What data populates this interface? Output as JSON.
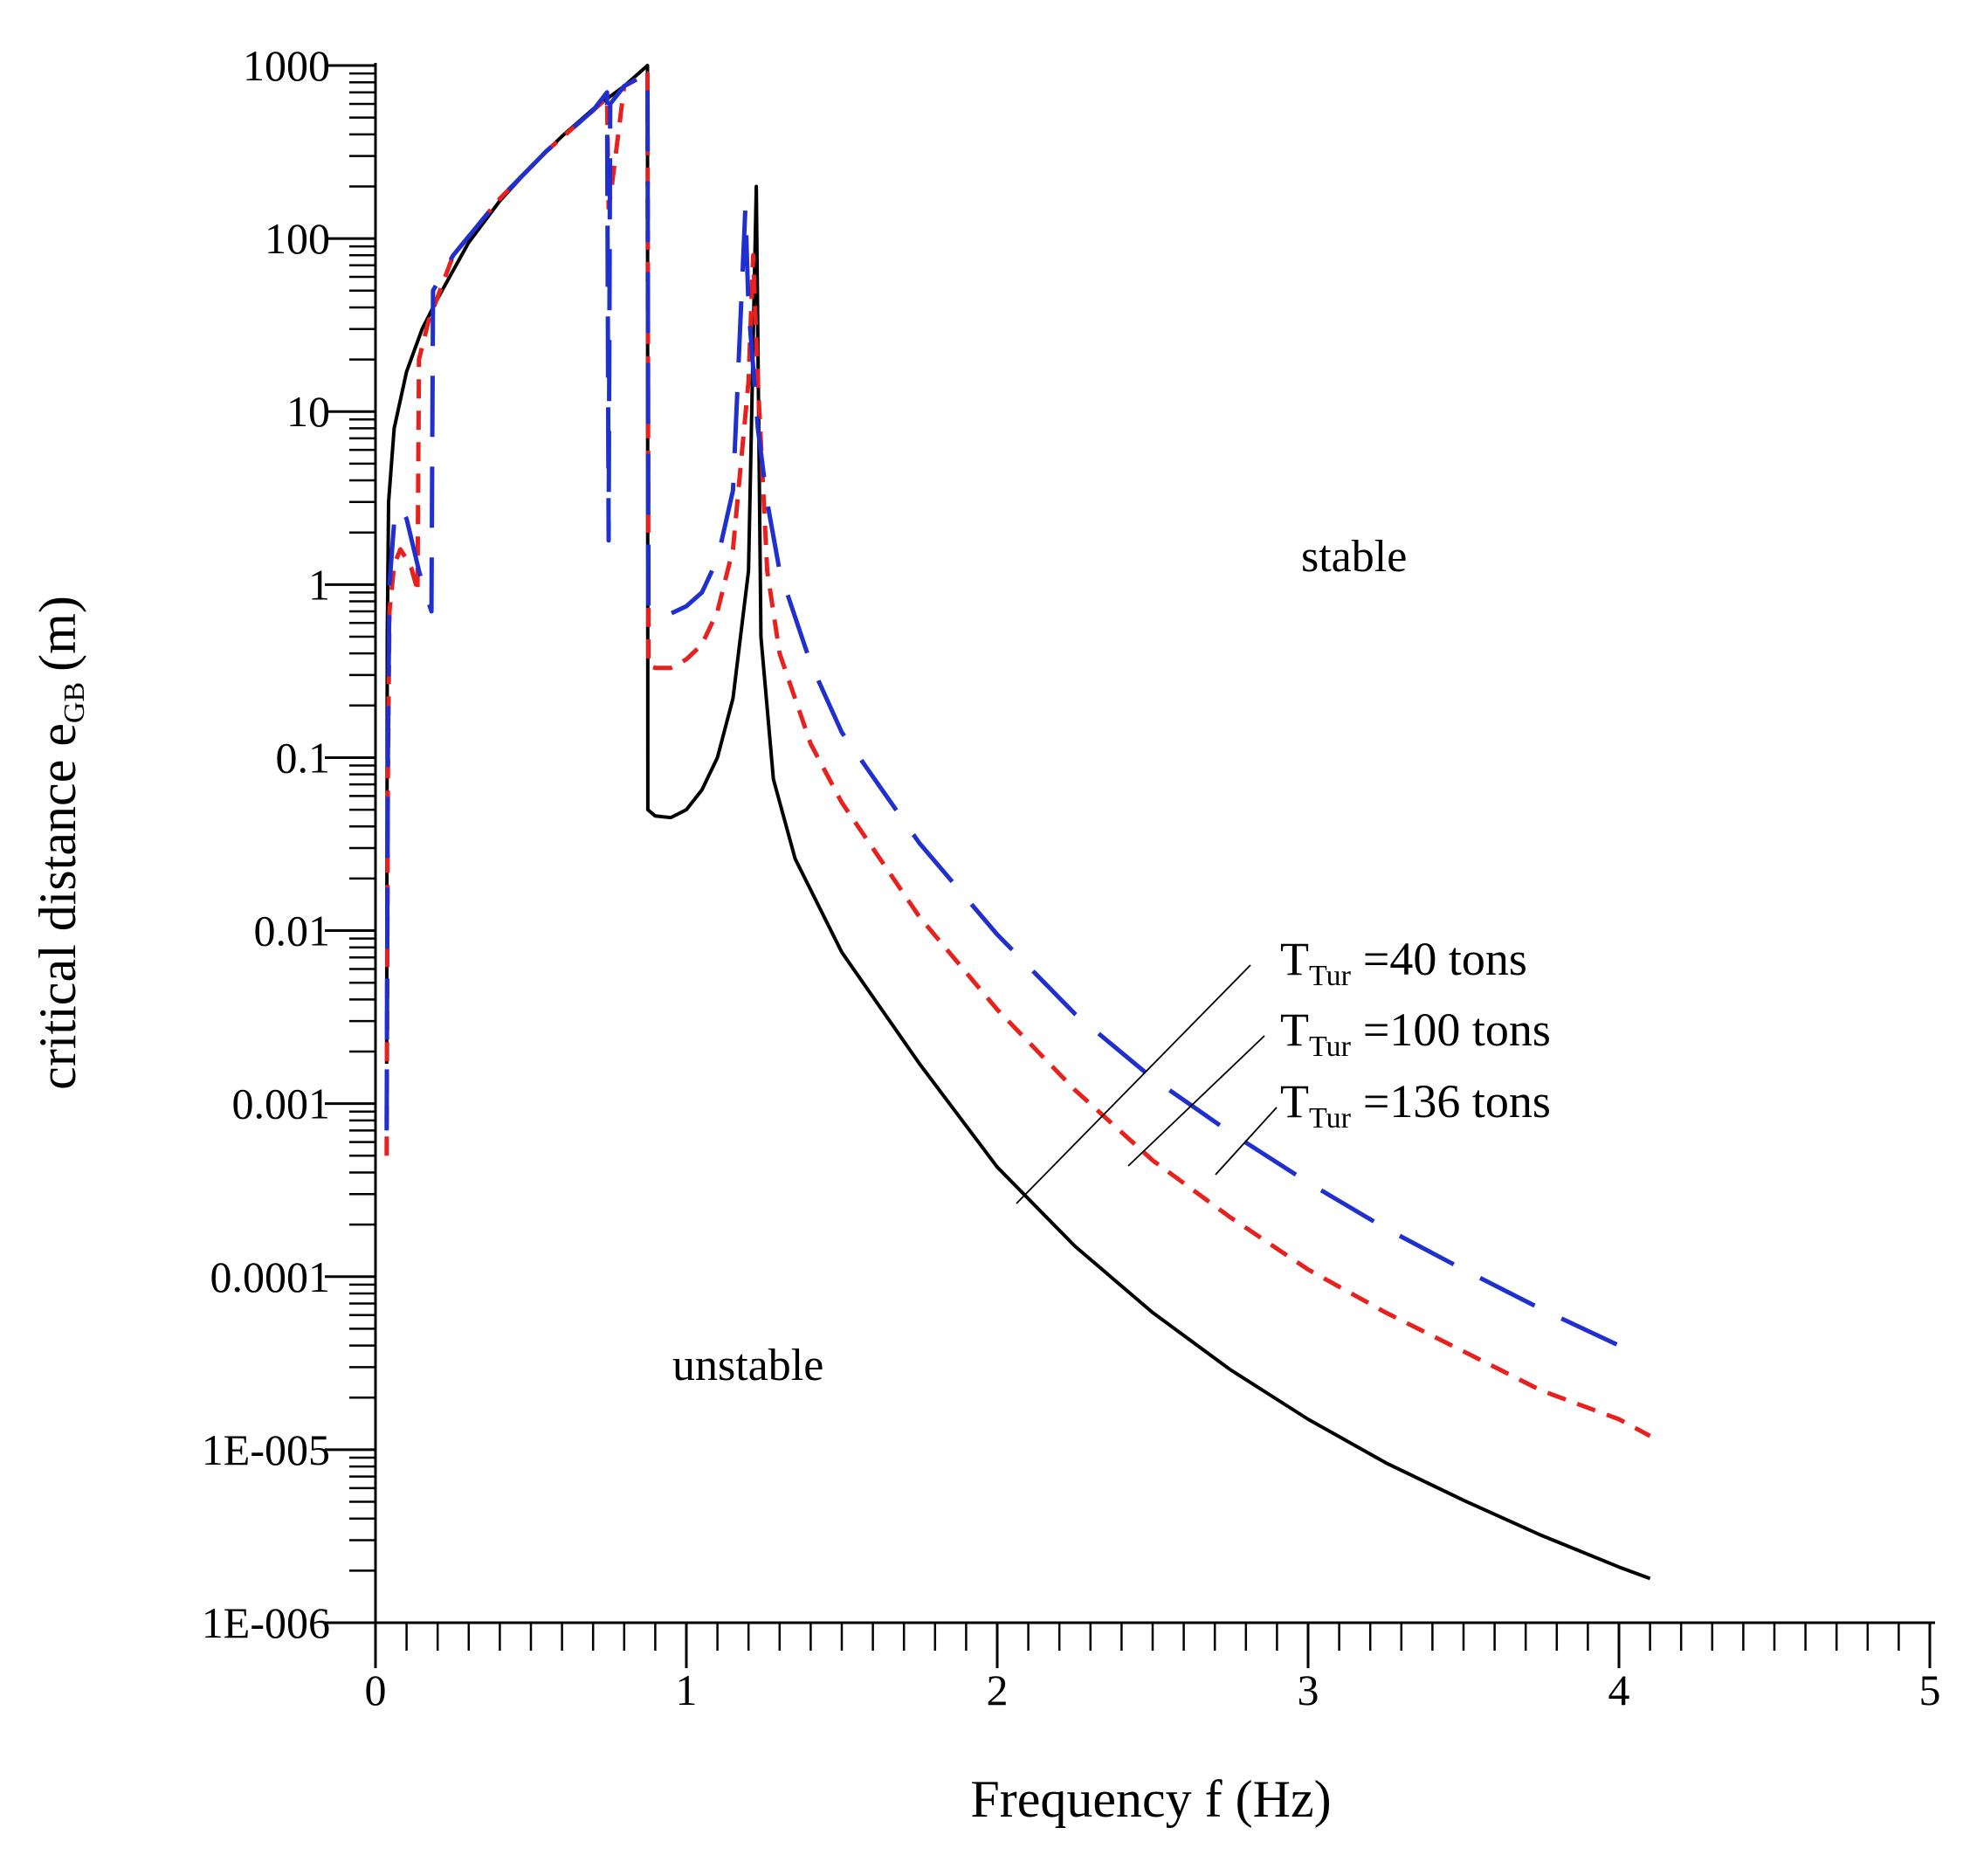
{
  "chart_data": {
    "type": "line",
    "title": "",
    "xlabel": "Frequency f (Hz)",
    "ylabel": {
      "main": "critical distance e",
      "sub": "GB",
      "unit": "(m)"
    },
    "xlim": [
      0,
      5
    ],
    "ylim": [
      1e-06,
      1000
    ],
    "yscale": "log",
    "x_ticks": [
      "0",
      "1",
      "2",
      "3",
      "4",
      "5"
    ],
    "x_tick_values": [
      0,
      1,
      2,
      3,
      4,
      5
    ],
    "y_ticks": [
      "1E-006",
      "1E-005",
      "0.0001",
      "0.001",
      "0.01",
      "0.1",
      "1",
      "10",
      "100",
      "1000"
    ],
    "y_tick_values": [
      1e-06,
      1e-05,
      0.0001,
      0.001,
      0.01,
      0.1,
      1,
      10,
      100,
      1000
    ],
    "annotations": {
      "stable": "stable",
      "unstable": "unstable"
    },
    "legend": [
      {
        "prefix": "T",
        "sub": "Tur",
        "text": "=40 tons"
      },
      {
        "prefix": "T",
        "sub": "Tur",
        "text": "=100 tons"
      },
      {
        "prefix": "T",
        "sub": "Tur",
        "text": "=136 tons"
      }
    ],
    "series": [
      {
        "name": "T_Tur=40 tons",
        "color": "#000000",
        "style": "solid",
        "points": [
          [
            0.036,
            0.0017
          ],
          [
            0.038,
            0.5
          ],
          [
            0.042,
            3
          ],
          [
            0.06,
            8
          ],
          [
            0.1,
            17
          ],
          [
            0.15,
            30
          ],
          [
            0.2,
            45
          ],
          [
            0.3,
            95
          ],
          [
            0.4,
            165
          ],
          [
            0.5,
            260
          ],
          [
            0.6,
            390
          ],
          [
            0.7,
            560
          ],
          [
            0.8,
            760
          ],
          [
            0.875,
            1000
          ],
          [
            0.876,
            0.05
          ],
          [
            0.9,
            0.046
          ],
          [
            0.95,
            0.045
          ],
          [
            1.0,
            0.05
          ],
          [
            1.05,
            0.065
          ],
          [
            1.1,
            0.1
          ],
          [
            1.15,
            0.22
          ],
          [
            1.2,
            1.2
          ],
          [
            1.225,
            200
          ],
          [
            1.24,
            0.5
          ],
          [
            1.28,
            0.075
          ],
          [
            1.35,
            0.026
          ],
          [
            1.5,
            0.0075
          ],
          [
            1.75,
            0.0017
          ],
          [
            2.0,
            0.00043
          ],
          [
            2.25,
            0.00015
          ],
          [
            2.5,
            6.2e-05
          ],
          [
            2.75,
            2.9e-05
          ],
          [
            3.0,
            1.5e-05
          ],
          [
            3.25,
            8.4e-06
          ],
          [
            3.5,
            5.1e-06
          ],
          [
            3.75,
            3.2e-06
          ],
          [
            4.0,
            2.1e-06
          ],
          [
            4.1,
            1.8e-06
          ]
        ]
      },
      {
        "name": "T_Tur=100 tons",
        "color": "#e8201e",
        "style": "short-dash",
        "points": [
          [
            0.036,
            0.0005
          ],
          [
            0.04,
            0.08
          ],
          [
            0.045,
            0.7
          ],
          [
            0.06,
            1.3
          ],
          [
            0.08,
            1.6
          ],
          [
            0.1,
            1.4
          ],
          [
            0.115,
            1.25
          ],
          [
            0.13,
            1.0
          ],
          [
            0.135,
            0.9
          ],
          [
            0.14,
            20
          ],
          [
            0.17,
            33
          ],
          [
            0.25,
            80
          ],
          [
            0.4,
            170
          ],
          [
            0.55,
            320
          ],
          [
            0.7,
            550
          ],
          [
            0.745,
            650
          ],
          [
            0.75,
            150
          ],
          [
            0.76,
            200
          ],
          [
            0.8,
            760
          ],
          [
            0.875,
            900
          ],
          [
            0.878,
            0.34
          ],
          [
            0.9,
            0.33
          ],
          [
            0.95,
            0.33
          ],
          [
            1.0,
            0.37
          ],
          [
            1.05,
            0.45
          ],
          [
            1.1,
            0.7
          ],
          [
            1.15,
            1.6
          ],
          [
            1.2,
            15
          ],
          [
            1.215,
            80
          ],
          [
            1.23,
            15
          ],
          [
            1.26,
            1.2
          ],
          [
            1.3,
            0.4
          ],
          [
            1.4,
            0.12
          ],
          [
            1.5,
            0.055
          ],
          [
            1.75,
            0.012
          ],
          [
            2.0,
            0.0035
          ],
          [
            2.25,
            0.0012
          ],
          [
            2.5,
            0.00047
          ],
          [
            2.75,
            0.00022
          ],
          [
            3.0,
            0.00011
          ],
          [
            3.25,
            6.2e-05
          ],
          [
            3.5,
            3.7e-05
          ],
          [
            3.75,
            2.2e-05
          ],
          [
            4.0,
            1.5e-05
          ],
          [
            4.1,
            1.2e-05
          ]
        ]
      },
      {
        "name": "T_Tur=136 tons",
        "color": "#1f2fd0",
        "style": "long-dash",
        "points": [
          [
            0.036,
            0.0007
          ],
          [
            0.04,
            0.1
          ],
          [
            0.045,
            1.0
          ],
          [
            0.06,
            2.3
          ],
          [
            0.08,
            2.8
          ],
          [
            0.1,
            2.4
          ],
          [
            0.12,
            1.7
          ],
          [
            0.14,
            1.2
          ],
          [
            0.16,
            0.9
          ],
          [
            0.18,
            0.7
          ],
          [
            0.185,
            50
          ],
          [
            0.25,
            80
          ],
          [
            0.4,
            170
          ],
          [
            0.55,
            320
          ],
          [
            0.7,
            550
          ],
          [
            0.745,
            700
          ],
          [
            0.75,
            1.8
          ],
          [
            0.755,
            600
          ],
          [
            0.8,
            760
          ],
          [
            0.875,
            900
          ],
          [
            0.878,
            0.7
          ],
          [
            0.9,
            0.67
          ],
          [
            0.95,
            0.68
          ],
          [
            1.0,
            0.75
          ],
          [
            1.05,
            0.9
          ],
          [
            1.1,
            1.4
          ],
          [
            1.15,
            3.5
          ],
          [
            1.19,
            150
          ],
          [
            1.2,
            40
          ],
          [
            1.23,
            8
          ],
          [
            1.26,
            3
          ],
          [
            1.3,
            1.2
          ],
          [
            1.4,
            0.35
          ],
          [
            1.5,
            0.14
          ],
          [
            1.75,
            0.032
          ],
          [
            2.0,
            0.0095
          ],
          [
            2.25,
            0.0033
          ],
          [
            2.5,
            0.0014
          ],
          [
            2.75,
            0.00068
          ],
          [
            3.0,
            0.00035
          ],
          [
            3.25,
            0.00019
          ],
          [
            3.5,
            0.00011
          ],
          [
            3.75,
            6.5e-05
          ],
          [
            4.0,
            4e-05
          ]
        ]
      }
    ]
  }
}
